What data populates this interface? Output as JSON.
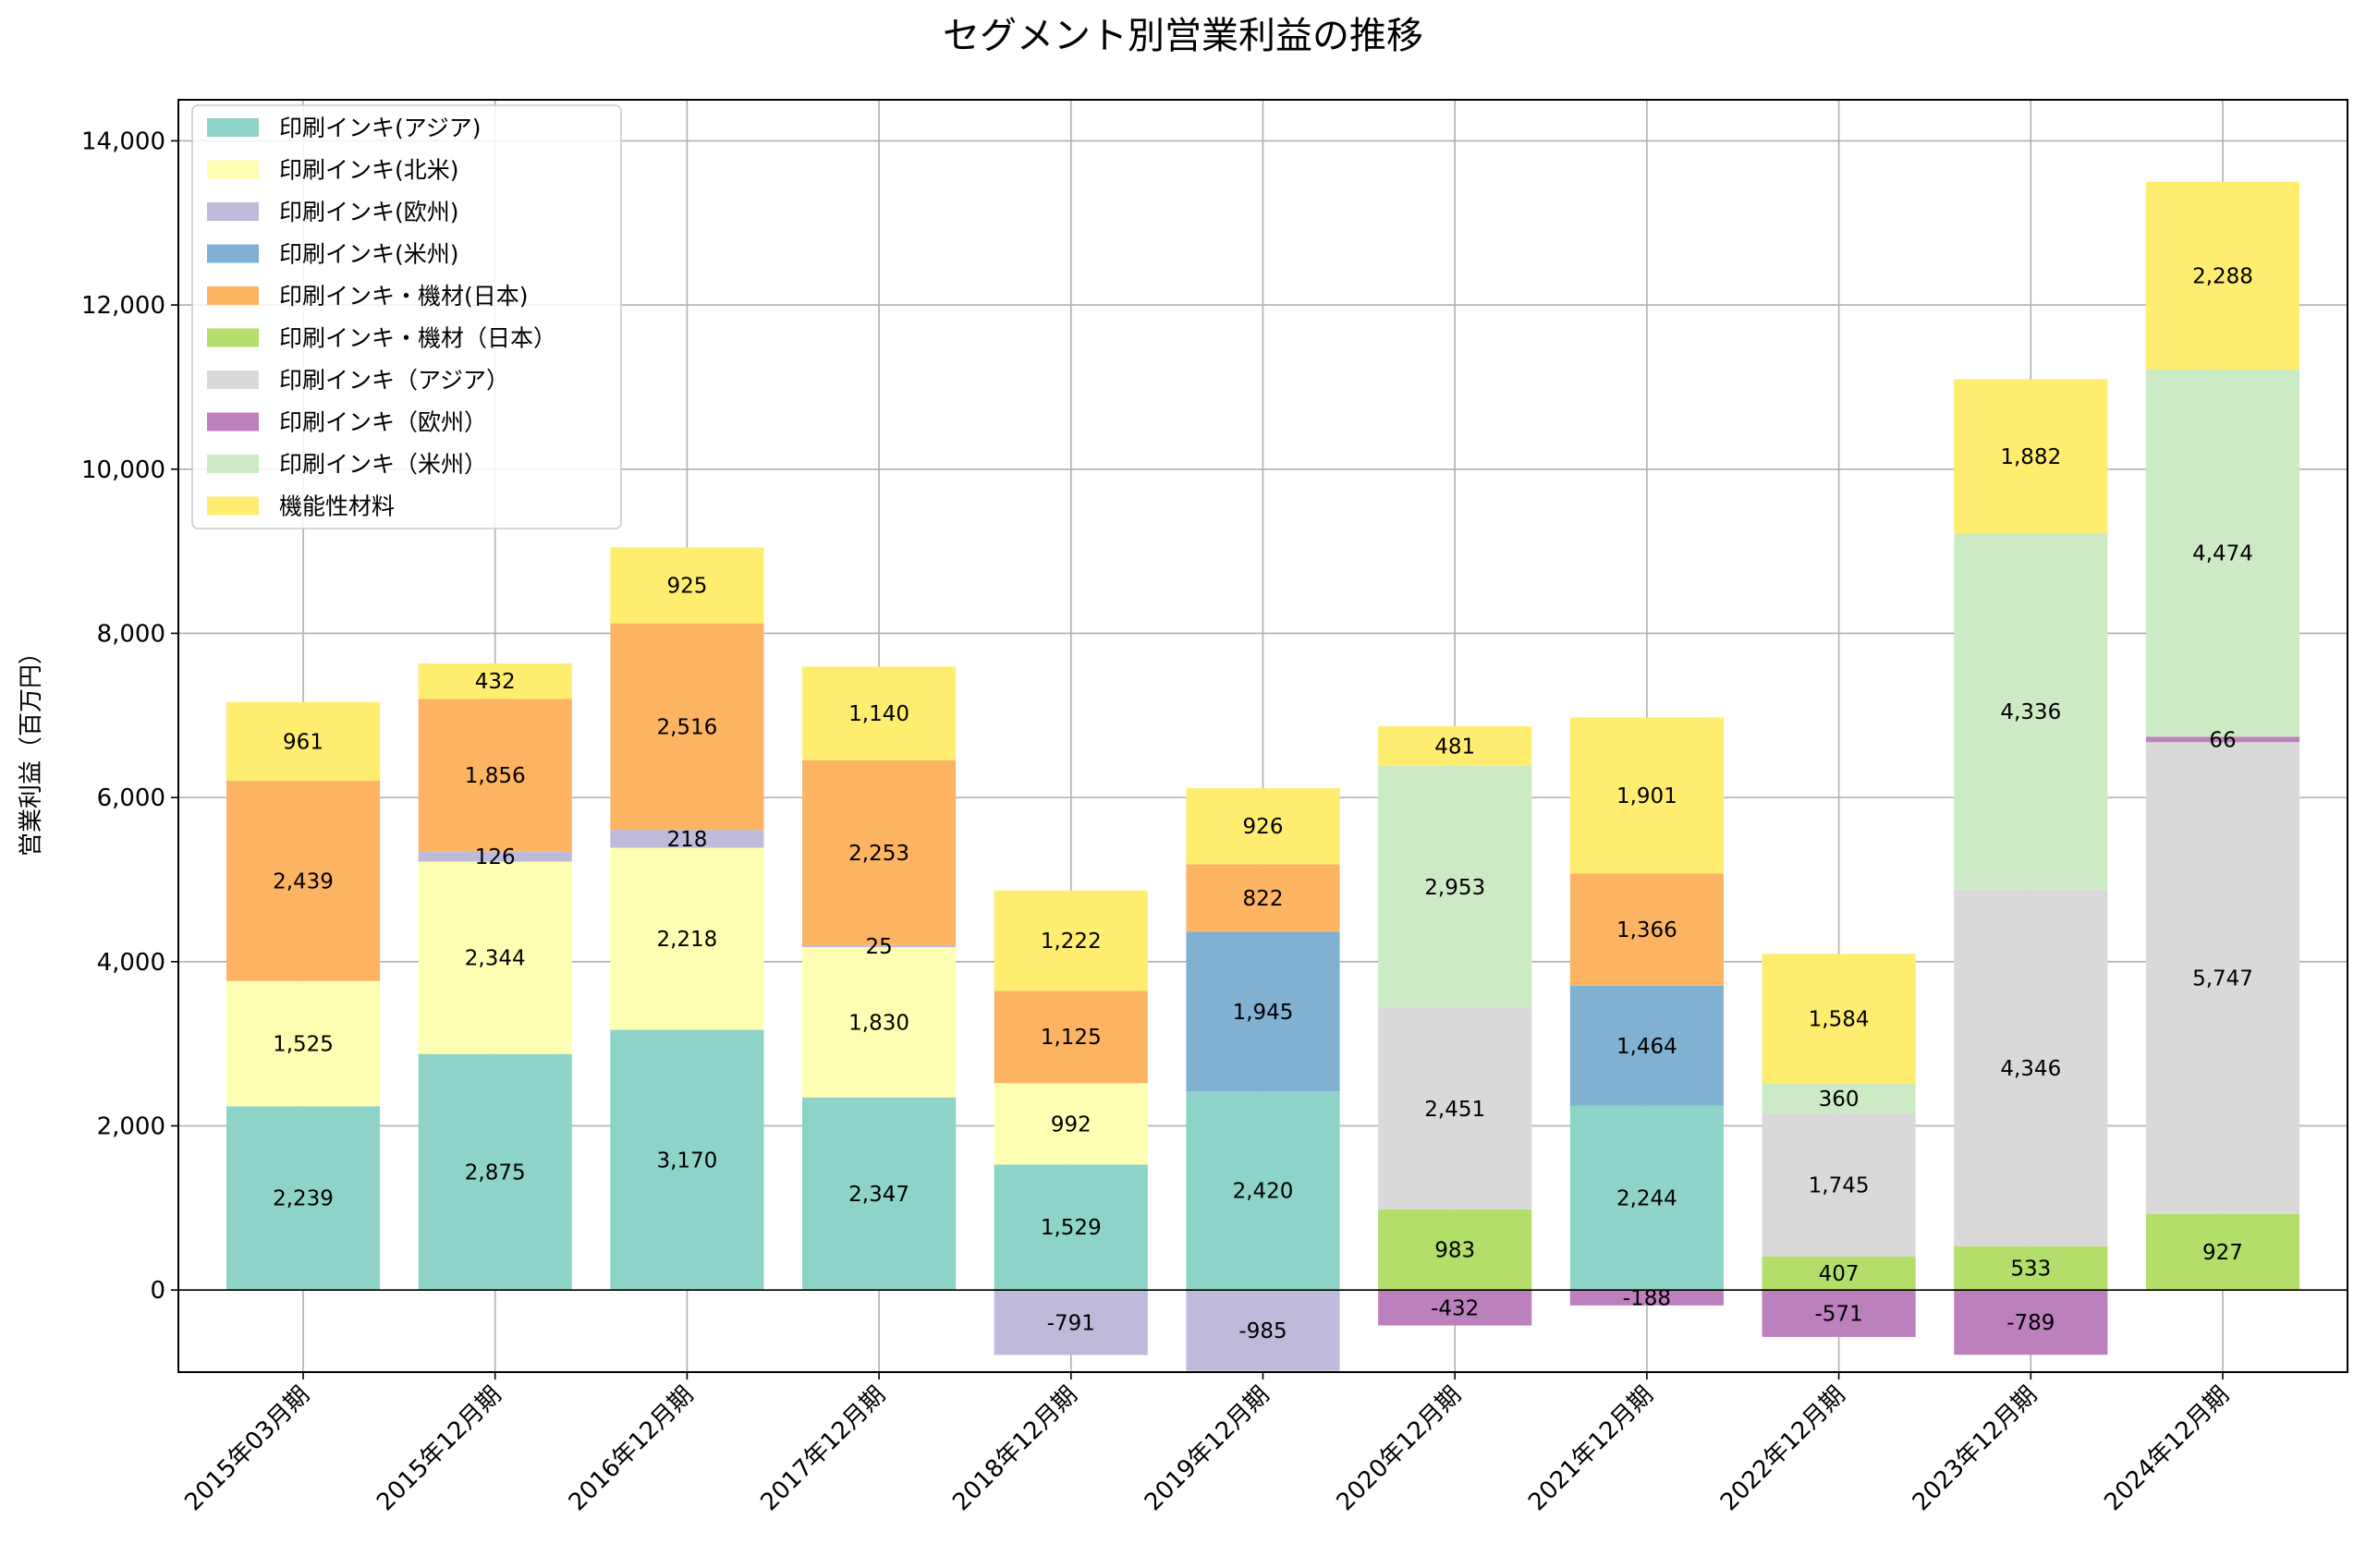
{
  "chart_data": {
    "type": "bar",
    "stacked": true,
    "title": "セグメント別営業利益の推移",
    "xlabel": "",
    "ylabel": "営業利益（百万円）",
    "ylim": [
      -1000,
      14500
    ],
    "yticks": [
      0,
      2000,
      4000,
      6000,
      8000,
      10000,
      12000,
      14000
    ],
    "ytick_labels": [
      "0",
      "2,000",
      "4,000",
      "6,000",
      "8,000",
      "10,000",
      "12,000",
      "14,000"
    ],
    "grid": true,
    "legend_position": "top-left",
    "categories": [
      "2015年03月期",
      "2015年12月期",
      "2016年12月期",
      "2017年12月期",
      "2018年12月期",
      "2019年12月期",
      "2020年12月期",
      "2021年12月期",
      "2022年12月期",
      "2023年12月期",
      "2024年12月期"
    ],
    "series": [
      {
        "name": "印刷インキ(アジア)",
        "color": "#8dd3c7",
        "values": [
          2239,
          2875,
          3170,
          2347,
          1529,
          2420,
          null,
          2244,
          null,
          null,
          null
        ]
      },
      {
        "name": "印刷インキ(北米)",
        "color": "#ffffb3",
        "values": [
          1525,
          2344,
          2218,
          1830,
          992,
          null,
          null,
          null,
          null,
          null,
          null
        ]
      },
      {
        "name": "印刷インキ(欧州)",
        "color": "#bebada",
        "values": [
          null,
          126,
          218,
          25,
          -791,
          -985,
          null,
          null,
          null,
          null,
          null
        ]
      },
      {
        "name": "印刷インキ(米州)",
        "color": "#80b1d3",
        "values": [
          null,
          null,
          null,
          null,
          null,
          1945,
          null,
          1464,
          null,
          null,
          null
        ]
      },
      {
        "name": "印刷インキ・機材(日本)",
        "color": "#fdb462",
        "values": [
          2439,
          1856,
          2516,
          2253,
          1125,
          822,
          null,
          1366,
          null,
          null,
          null
        ]
      },
      {
        "name": "印刷インキ・機材（日本）",
        "color": "#b3de69",
        "values": [
          null,
          null,
          null,
          null,
          null,
          null,
          983,
          null,
          407,
          533,
          927
        ]
      },
      {
        "name": "印刷インキ（アジア）",
        "color": "#d9d9d9",
        "values": [
          null,
          null,
          null,
          null,
          null,
          null,
          2451,
          null,
          1745,
          4346,
          5747
        ]
      },
      {
        "name": "印刷インキ（欧州）",
        "color": "#bc80bd",
        "values": [
          null,
          null,
          null,
          null,
          null,
          null,
          -432,
          -188,
          -571,
          -789,
          66
        ]
      },
      {
        "name": "印刷インキ（米州）",
        "color": "#ccebc5",
        "values": [
          null,
          null,
          null,
          null,
          null,
          null,
          2953,
          null,
          360,
          4336,
          4474
        ]
      },
      {
        "name": "機能性材料",
        "color": "#ffed6f",
        "values": [
          961,
          432,
          925,
          1140,
          1222,
          926,
          481,
          1901,
          1584,
          1882,
          2288
        ]
      }
    ]
  }
}
